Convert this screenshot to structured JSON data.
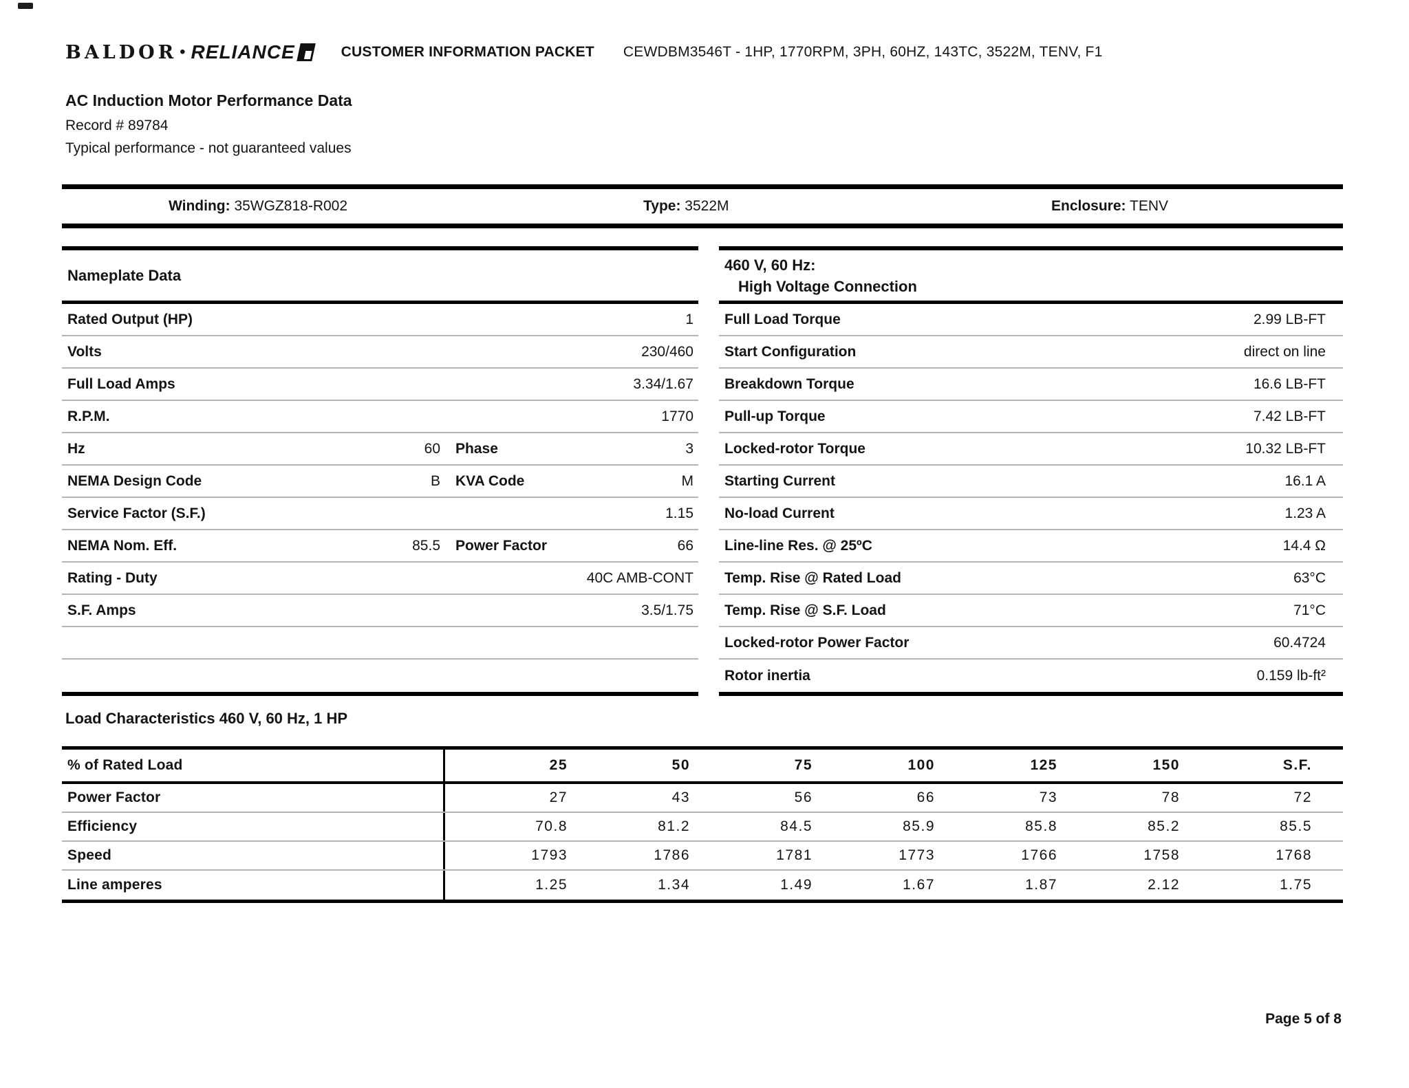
{
  "colors": {
    "text": "#141414",
    "rule_heavy": "#000000",
    "rule_light": "#b4b4b4",
    "background": "#ffffff"
  },
  "header": {
    "logo_baldor": "BALDOR",
    "logo_dot": "•",
    "logo_reliance": "RELIANCE",
    "logo_mark_icon": "reliance-flag-icon",
    "packet_title": "CUSTOMER INFORMATION PACKET",
    "model_line": "CEWDBM3546T - 1HP, 1770RPM, 3PH, 60HZ, 143TC, 3522M, TENV, F1"
  },
  "title_block": {
    "title": "AC Induction Motor Performance Data",
    "record": "Record # 89784",
    "note": "Typical performance - not guaranteed values"
  },
  "winding_band": {
    "items": [
      {
        "label": "Winding:",
        "value": "35WGZ818-R002"
      },
      {
        "label": "Type:",
        "value": "3522M"
      },
      {
        "label": "Enclosure:",
        "value": "TENV"
      }
    ]
  },
  "nameplate": {
    "header": "Nameplate Data",
    "rows": [
      {
        "label": "Rated Output (HP)",
        "mid": "",
        "label2": "",
        "value": "1"
      },
      {
        "label": "Volts",
        "mid": "",
        "label2": "",
        "value": "230/460"
      },
      {
        "label": "Full Load Amps",
        "mid": "",
        "label2": "",
        "value": "3.34/1.67"
      },
      {
        "label": "R.P.M.",
        "mid": "",
        "label2": "",
        "value": "1770"
      },
      {
        "label": "Hz",
        "mid": "60",
        "label2": "Phase",
        "value": "3"
      },
      {
        "label": "NEMA Design Code",
        "mid": "B",
        "label2": "KVA Code",
        "value": "M"
      },
      {
        "label": "Service Factor (S.F.)",
        "mid": "",
        "label2": "",
        "value": "1.15"
      },
      {
        "label": "NEMA Nom. Eff.",
        "mid": "85.5",
        "label2": "Power Factor",
        "value": "66"
      },
      {
        "label": "Rating - Duty",
        "mid": "",
        "label2": "",
        "value": "40C AMB-CONT"
      },
      {
        "label": "S.F. Amps",
        "mid": "",
        "label2": "",
        "value": "3.5/1.75"
      },
      {
        "label": "",
        "mid": "",
        "label2": "",
        "value": ""
      },
      {
        "label": "",
        "mid": "",
        "label2": "",
        "value": ""
      }
    ]
  },
  "connection": {
    "header_line1": "460 V, 60 Hz:",
    "header_line2": "High Voltage Connection",
    "rows": [
      {
        "label": "Full Load Torque",
        "value": "2.99 LB-FT"
      },
      {
        "label": "Start Configuration",
        "value": "direct on line"
      },
      {
        "label": "Breakdown Torque",
        "value": "16.6 LB-FT"
      },
      {
        "label": "Pull-up Torque",
        "value": "7.42 LB-FT"
      },
      {
        "label": "Locked-rotor Torque",
        "value": "10.32 LB-FT"
      },
      {
        "label": "Starting Current",
        "value": "16.1 A"
      },
      {
        "label": "No-load Current",
        "value": "1.23 A"
      },
      {
        "label": "Line-line Res. @ 25ºC",
        "value": "14.4 Ω"
      },
      {
        "label": "Temp. Rise @ Rated Load",
        "value": "63°C"
      },
      {
        "label": "Temp. Rise @ S.F. Load",
        "value": "71°C"
      },
      {
        "label": "Locked-rotor Power Factor",
        "value": "60.4724"
      },
      {
        "label": "Rotor inertia",
        "value": "0.159 lb-ft²"
      }
    ]
  },
  "load_characteristics": {
    "heading": "Load Characteristics 460 V, 60 Hz, 1 HP",
    "columns": [
      "% of Rated Load",
      "25",
      "50",
      "75",
      "100",
      "125",
      "150",
      "S.F."
    ],
    "rows": [
      {
        "label": "Power Factor",
        "values": [
          "27",
          "43",
          "56",
          "66",
          "73",
          "78",
          "72"
        ]
      },
      {
        "label": "Efficiency",
        "values": [
          "70.8",
          "81.2",
          "84.5",
          "85.9",
          "85.8",
          "85.2",
          "85.5"
        ]
      },
      {
        "label": "Speed",
        "values": [
          "1793",
          "1786",
          "1781",
          "1773",
          "1766",
          "1758",
          "1768"
        ]
      },
      {
        "label": "Line amperes",
        "values": [
          "1.25",
          "1.34",
          "1.49",
          "1.67",
          "1.87",
          "2.12",
          "1.75"
        ]
      }
    ]
  },
  "footer": {
    "page": "Page 5 of 8"
  }
}
